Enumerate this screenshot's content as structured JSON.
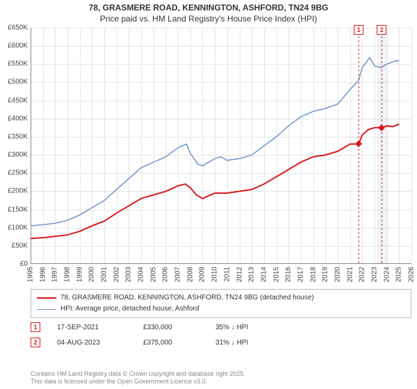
{
  "title_line1": "78, GRASMERE ROAD, KENNINGTON, ASHFORD, TN24 9BG",
  "title_line2": "Price paid vs. HM Land Registry's House Price Index (HPI)",
  "chart": {
    "type": "line",
    "background_color": "#ffffff",
    "grid_color": "#e6e6e6",
    "axis_color": "#888888",
    "label_fontsize": 10,
    "x_years": [
      1995,
      1996,
      1997,
      1998,
      1999,
      2000,
      2001,
      2002,
      2003,
      2004,
      2005,
      2006,
      2007,
      2008,
      2009,
      2010,
      2011,
      2012,
      2013,
      2014,
      2015,
      2016,
      2017,
      2018,
      2019,
      2020,
      2021,
      2022,
      2023,
      2024,
      2025,
      2026
    ],
    "y_ticks": [
      0,
      50000,
      100000,
      150000,
      200000,
      250000,
      300000,
      350000,
      400000,
      450000,
      500000,
      550000,
      600000,
      650000
    ],
    "y_tick_labels": [
      "£0",
      "£50K",
      "£100K",
      "£150K",
      "£200K",
      "£250K",
      "£300K",
      "£350K",
      "£400K",
      "£450K",
      "£500K",
      "£550K",
      "£600K",
      "£650K"
    ],
    "ylim": [
      0,
      650000
    ],
    "xlim": [
      1995,
      2026
    ],
    "highlight_band": {
      "x_start": 2023.2,
      "x_end": 2024.0,
      "color": "#dbe7f5"
    },
    "series": [
      {
        "name": "price_paid",
        "label": "78, GRASMERE ROAD, KENNINGTON, ASHFORD, TN24 9BG (detached house)",
        "color": "#d8181b",
        "line_width": 2,
        "data": [
          [
            1995,
            70000
          ],
          [
            1996,
            72000
          ],
          [
            1997,
            76000
          ],
          [
            1998,
            80000
          ],
          [
            1999,
            90000
          ],
          [
            2000,
            105000
          ],
          [
            2001,
            118000
          ],
          [
            2002,
            140000
          ],
          [
            2003,
            160000
          ],
          [
            2004,
            180000
          ],
          [
            2005,
            190000
          ],
          [
            2006,
            200000
          ],
          [
            2007,
            215000
          ],
          [
            2007.6,
            220000
          ],
          [
            2008,
            210000
          ],
          [
            2008.5,
            190000
          ],
          [
            2009,
            180000
          ],
          [
            2009.5,
            188000
          ],
          [
            2010,
            195000
          ],
          [
            2011,
            195000
          ],
          [
            2012,
            200000
          ],
          [
            2013,
            205000
          ],
          [
            2014,
            220000
          ],
          [
            2015,
            240000
          ],
          [
            2016,
            260000
          ],
          [
            2017,
            280000
          ],
          [
            2018,
            295000
          ],
          [
            2019,
            300000
          ],
          [
            2020,
            310000
          ],
          [
            2021,
            330000
          ],
          [
            2021.7,
            330000
          ],
          [
            2022,
            355000
          ],
          [
            2022.5,
            370000
          ],
          [
            2023,
            375000
          ],
          [
            2023.6,
            375000
          ],
          [
            2024,
            380000
          ],
          [
            2024.5,
            378000
          ],
          [
            2025,
            385000
          ]
        ]
      },
      {
        "name": "hpi",
        "label": "HPI: Average price, detached house, Ashford",
        "color": "#6d94c8",
        "line_width": 1.5,
        "data": [
          [
            1995,
            105000
          ],
          [
            1996,
            108000
          ],
          [
            1997,
            112000
          ],
          [
            1998,
            120000
          ],
          [
            1999,
            135000
          ],
          [
            2000,
            155000
          ],
          [
            2001,
            175000
          ],
          [
            2002,
            205000
          ],
          [
            2003,
            235000
          ],
          [
            2004,
            265000
          ],
          [
            2005,
            280000
          ],
          [
            2006,
            295000
          ],
          [
            2007,
            320000
          ],
          [
            2007.7,
            330000
          ],
          [
            2008,
            305000
          ],
          [
            2008.6,
            275000
          ],
          [
            2009,
            270000
          ],
          [
            2010,
            290000
          ],
          [
            2010.5,
            295000
          ],
          [
            2011,
            285000
          ],
          [
            2012,
            290000
          ],
          [
            2013,
            300000
          ],
          [
            2014,
            325000
          ],
          [
            2015,
            350000
          ],
          [
            2016,
            380000
          ],
          [
            2017,
            405000
          ],
          [
            2018,
            420000
          ],
          [
            2019,
            428000
          ],
          [
            2020,
            440000
          ],
          [
            2021,
            480000
          ],
          [
            2021.7,
            505000
          ],
          [
            2022,
            540000
          ],
          [
            2022.6,
            568000
          ],
          [
            2023,
            545000
          ],
          [
            2023.5,
            540000
          ],
          [
            2024,
            550000
          ],
          [
            2024.6,
            558000
          ],
          [
            2025,
            560000
          ]
        ]
      }
    ],
    "event_markers": [
      {
        "n": "1",
        "x": 2021.71,
        "color": "#d8181b"
      },
      {
        "n": "2",
        "x": 2023.59,
        "color": "#d8181b"
      }
    ],
    "sale_points": [
      {
        "x": 2021.71,
        "y": 330000,
        "color": "#d8181b"
      },
      {
        "x": 2023.59,
        "y": 375000,
        "color": "#d8181b"
      }
    ]
  },
  "legend": {
    "items": [
      {
        "color": "#d8181b",
        "weight": 2,
        "label": "78, GRASMERE ROAD, KENNINGTON, ASHFORD, TN24 9BG (detached house)"
      },
      {
        "color": "#6d94c8",
        "weight": 1.5,
        "label": "HPI: Average price, detached house, Ashford"
      }
    ]
  },
  "events_table": {
    "rows": [
      {
        "n": "1",
        "color": "#d8181b",
        "date": "17-SEP-2021",
        "price": "£330,000",
        "delta": "35% ↓ HPI"
      },
      {
        "n": "2",
        "color": "#d8181b",
        "date": "04-AUG-2023",
        "price": "£375,000",
        "delta": "31% ↓ HPI"
      }
    ]
  },
  "footer_line1": "Contains HM Land Registry data © Crown copyright and database right 2025.",
  "footer_line2": "This data is licensed under the Open Government Licence v3.0."
}
